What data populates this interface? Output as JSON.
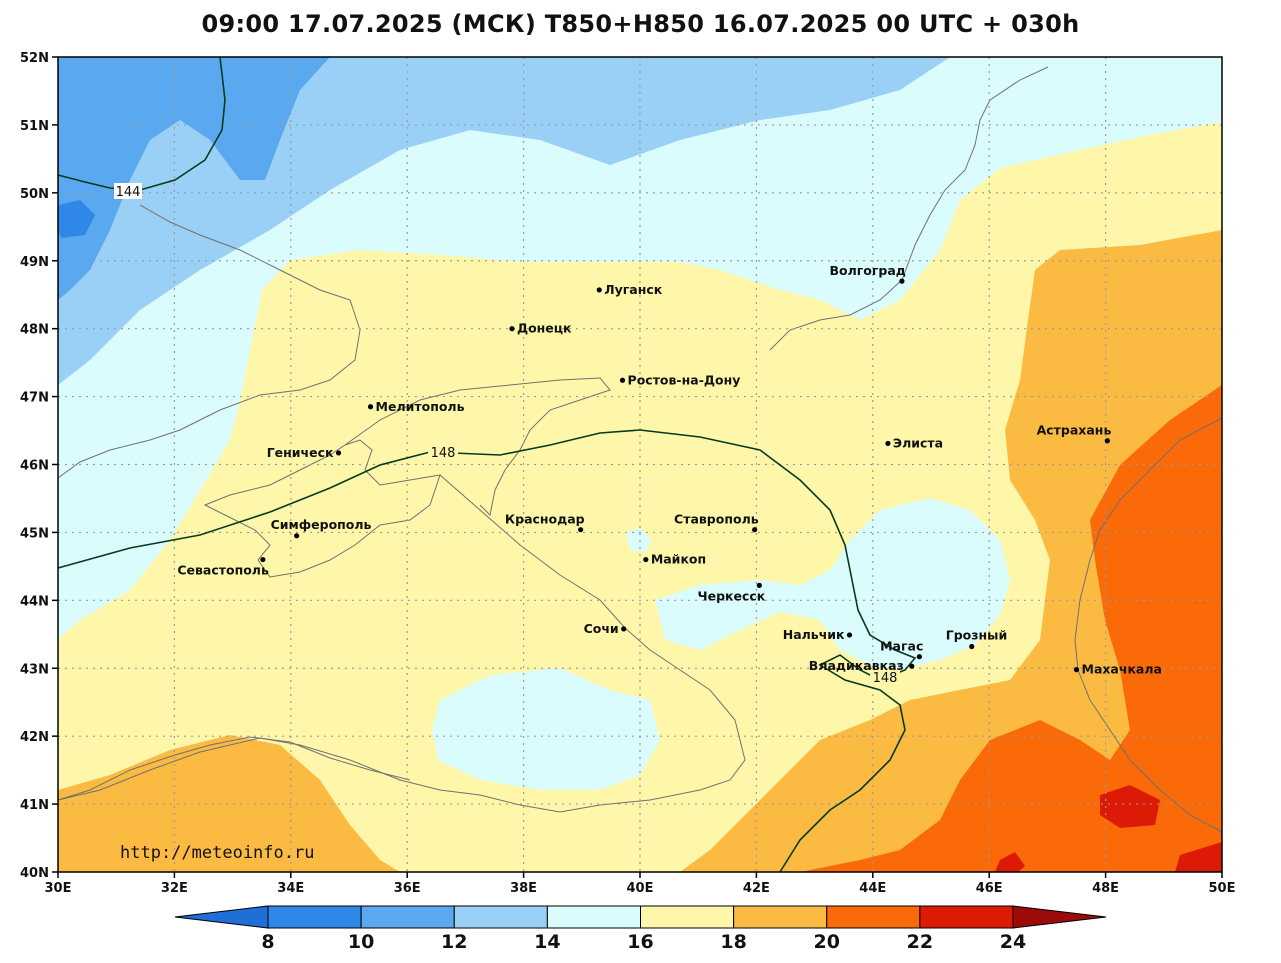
{
  "title": "09:00 17.07.2025 (МСК) T850+H850 16.07.2025 00 UTC + 030h",
  "website": "http://meteoinfo.ru",
  "lat_labels": [
    "52N",
    "51N",
    "50N",
    "49N",
    "48N",
    "47N",
    "46N",
    "45N",
    "44N",
    "43N",
    "42N",
    "41N",
    "40N"
  ],
  "lon_labels": [
    "30E",
    "32E",
    "34E",
    "36E",
    "38E",
    "40E",
    "42E",
    "44E",
    "46E",
    "48E",
    "50E"
  ],
  "colorbar": {
    "ticks": [
      "8",
      "10",
      "12",
      "14",
      "16",
      "18",
      "20",
      "22",
      "24"
    ],
    "colors": [
      "#1f6fd6",
      "#2f87e8",
      "#5aa9f0",
      "#9ad0f5",
      "#dbfcfd",
      "#fef7aa",
      "#fbbb43",
      "#fb6a08",
      "#dd1a06",
      "#9c0a0a"
    ]
  },
  "contours": [
    {
      "label": "144"
    },
    {
      "label": "148"
    },
    {
      "label": "148"
    }
  ],
  "cities": [
    {
      "name": "Луганск",
      "lon": 39.3,
      "lat": 48.57
    },
    {
      "name": "Донецк",
      "lon": 37.8,
      "lat": 48.0
    },
    {
      "name": "Волгоград",
      "lon": 44.5,
      "lat": 48.7
    },
    {
      "name": "Ростов-на-Дону",
      "lon": 39.7,
      "lat": 47.24
    },
    {
      "name": "Мелитополь",
      "lon": 35.37,
      "lat": 46.85
    },
    {
      "name": "Геническ",
      "lon": 34.82,
      "lat": 46.17
    },
    {
      "name": "Элиста",
      "lon": 44.26,
      "lat": 46.31
    },
    {
      "name": "Астрахань",
      "lon": 48.03,
      "lat": 46.35
    },
    {
      "name": "Краснодар",
      "lon": 38.98,
      "lat": 45.04
    },
    {
      "name": "Ставрополь",
      "lon": 41.97,
      "lat": 45.04
    },
    {
      "name": "Симферополь",
      "lon": 34.1,
      "lat": 44.95
    },
    {
      "name": "Севастополь",
      "lon": 33.52,
      "lat": 44.6
    },
    {
      "name": "Майкоп",
      "lon": 40.1,
      "lat": 44.6
    },
    {
      "name": "Черкесск",
      "lon": 42.05,
      "lat": 44.22
    },
    {
      "name": "Сочи",
      "lon": 39.72,
      "lat": 43.58
    },
    {
      "name": "Нальчик",
      "lon": 43.6,
      "lat": 43.49
    },
    {
      "name": "Магас",
      "lon": 44.8,
      "lat": 43.17
    },
    {
      "name": "Грозный",
      "lon": 45.7,
      "lat": 43.32
    },
    {
      "name": "Владикавказ",
      "lon": 44.67,
      "lat": 43.03
    },
    {
      "name": "Махачкала",
      "lon": 47.5,
      "lat": 42.98
    }
  ]
}
